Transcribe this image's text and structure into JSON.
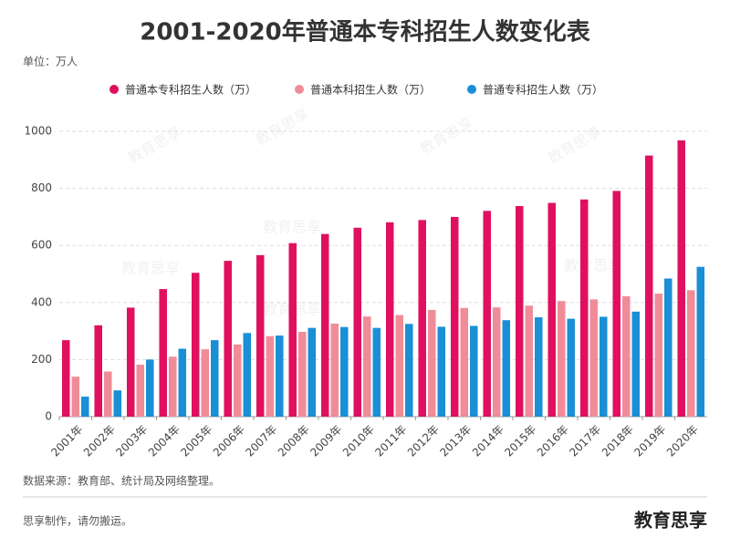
{
  "chart_data": {
    "type": "bar",
    "title": "2001-2020年普通本专科招生人数变化表",
    "unit": "单位：万人",
    "source": "数据来源：教育部、统计局及网络整理。",
    "footer": "思享制作，请勿搬运。",
    "watermark": "教育思享",
    "categories": [
      "2001年",
      "2002年",
      "2003年",
      "2004年",
      "2005年",
      "2006年",
      "2007年",
      "2008年",
      "2009年",
      "2010年",
      "2011年",
      "2012年",
      "2013年",
      "2014年",
      "2015年",
      "2016年",
      "2017年",
      "2018年",
      "2019年",
      "2020年"
    ],
    "series": [
      {
        "name": "普通本专科招生人数（万）",
        "color": "#e0105f",
        "values": [
          268,
          320,
          382,
          447,
          504,
          546,
          566,
          608,
          640,
          662,
          681,
          689,
          700,
          721,
          738,
          749,
          761,
          791,
          915,
          968
        ]
      },
      {
        "name": "普通本科招生人数（万）",
        "color": "#f08c98",
        "values": [
          140,
          158,
          182,
          210,
          236,
          253,
          282,
          297,
          326,
          351,
          356,
          374,
          381,
          383,
          389,
          405,
          411,
          422,
          431,
          443
        ]
      },
      {
        "name": "普通专科招生人数（万）",
        "color": "#1a8fd6",
        "values": [
          70,
          92,
          200,
          238,
          268,
          293,
          284,
          311,
          314,
          311,
          325,
          315,
          318,
          338,
          348,
          343,
          350,
          368,
          484,
          525
        ]
      }
    ],
    "ylim": [
      0,
      1000
    ],
    "yticks": [
      0,
      200,
      400,
      600,
      800,
      1000
    ],
    "grid": true
  }
}
